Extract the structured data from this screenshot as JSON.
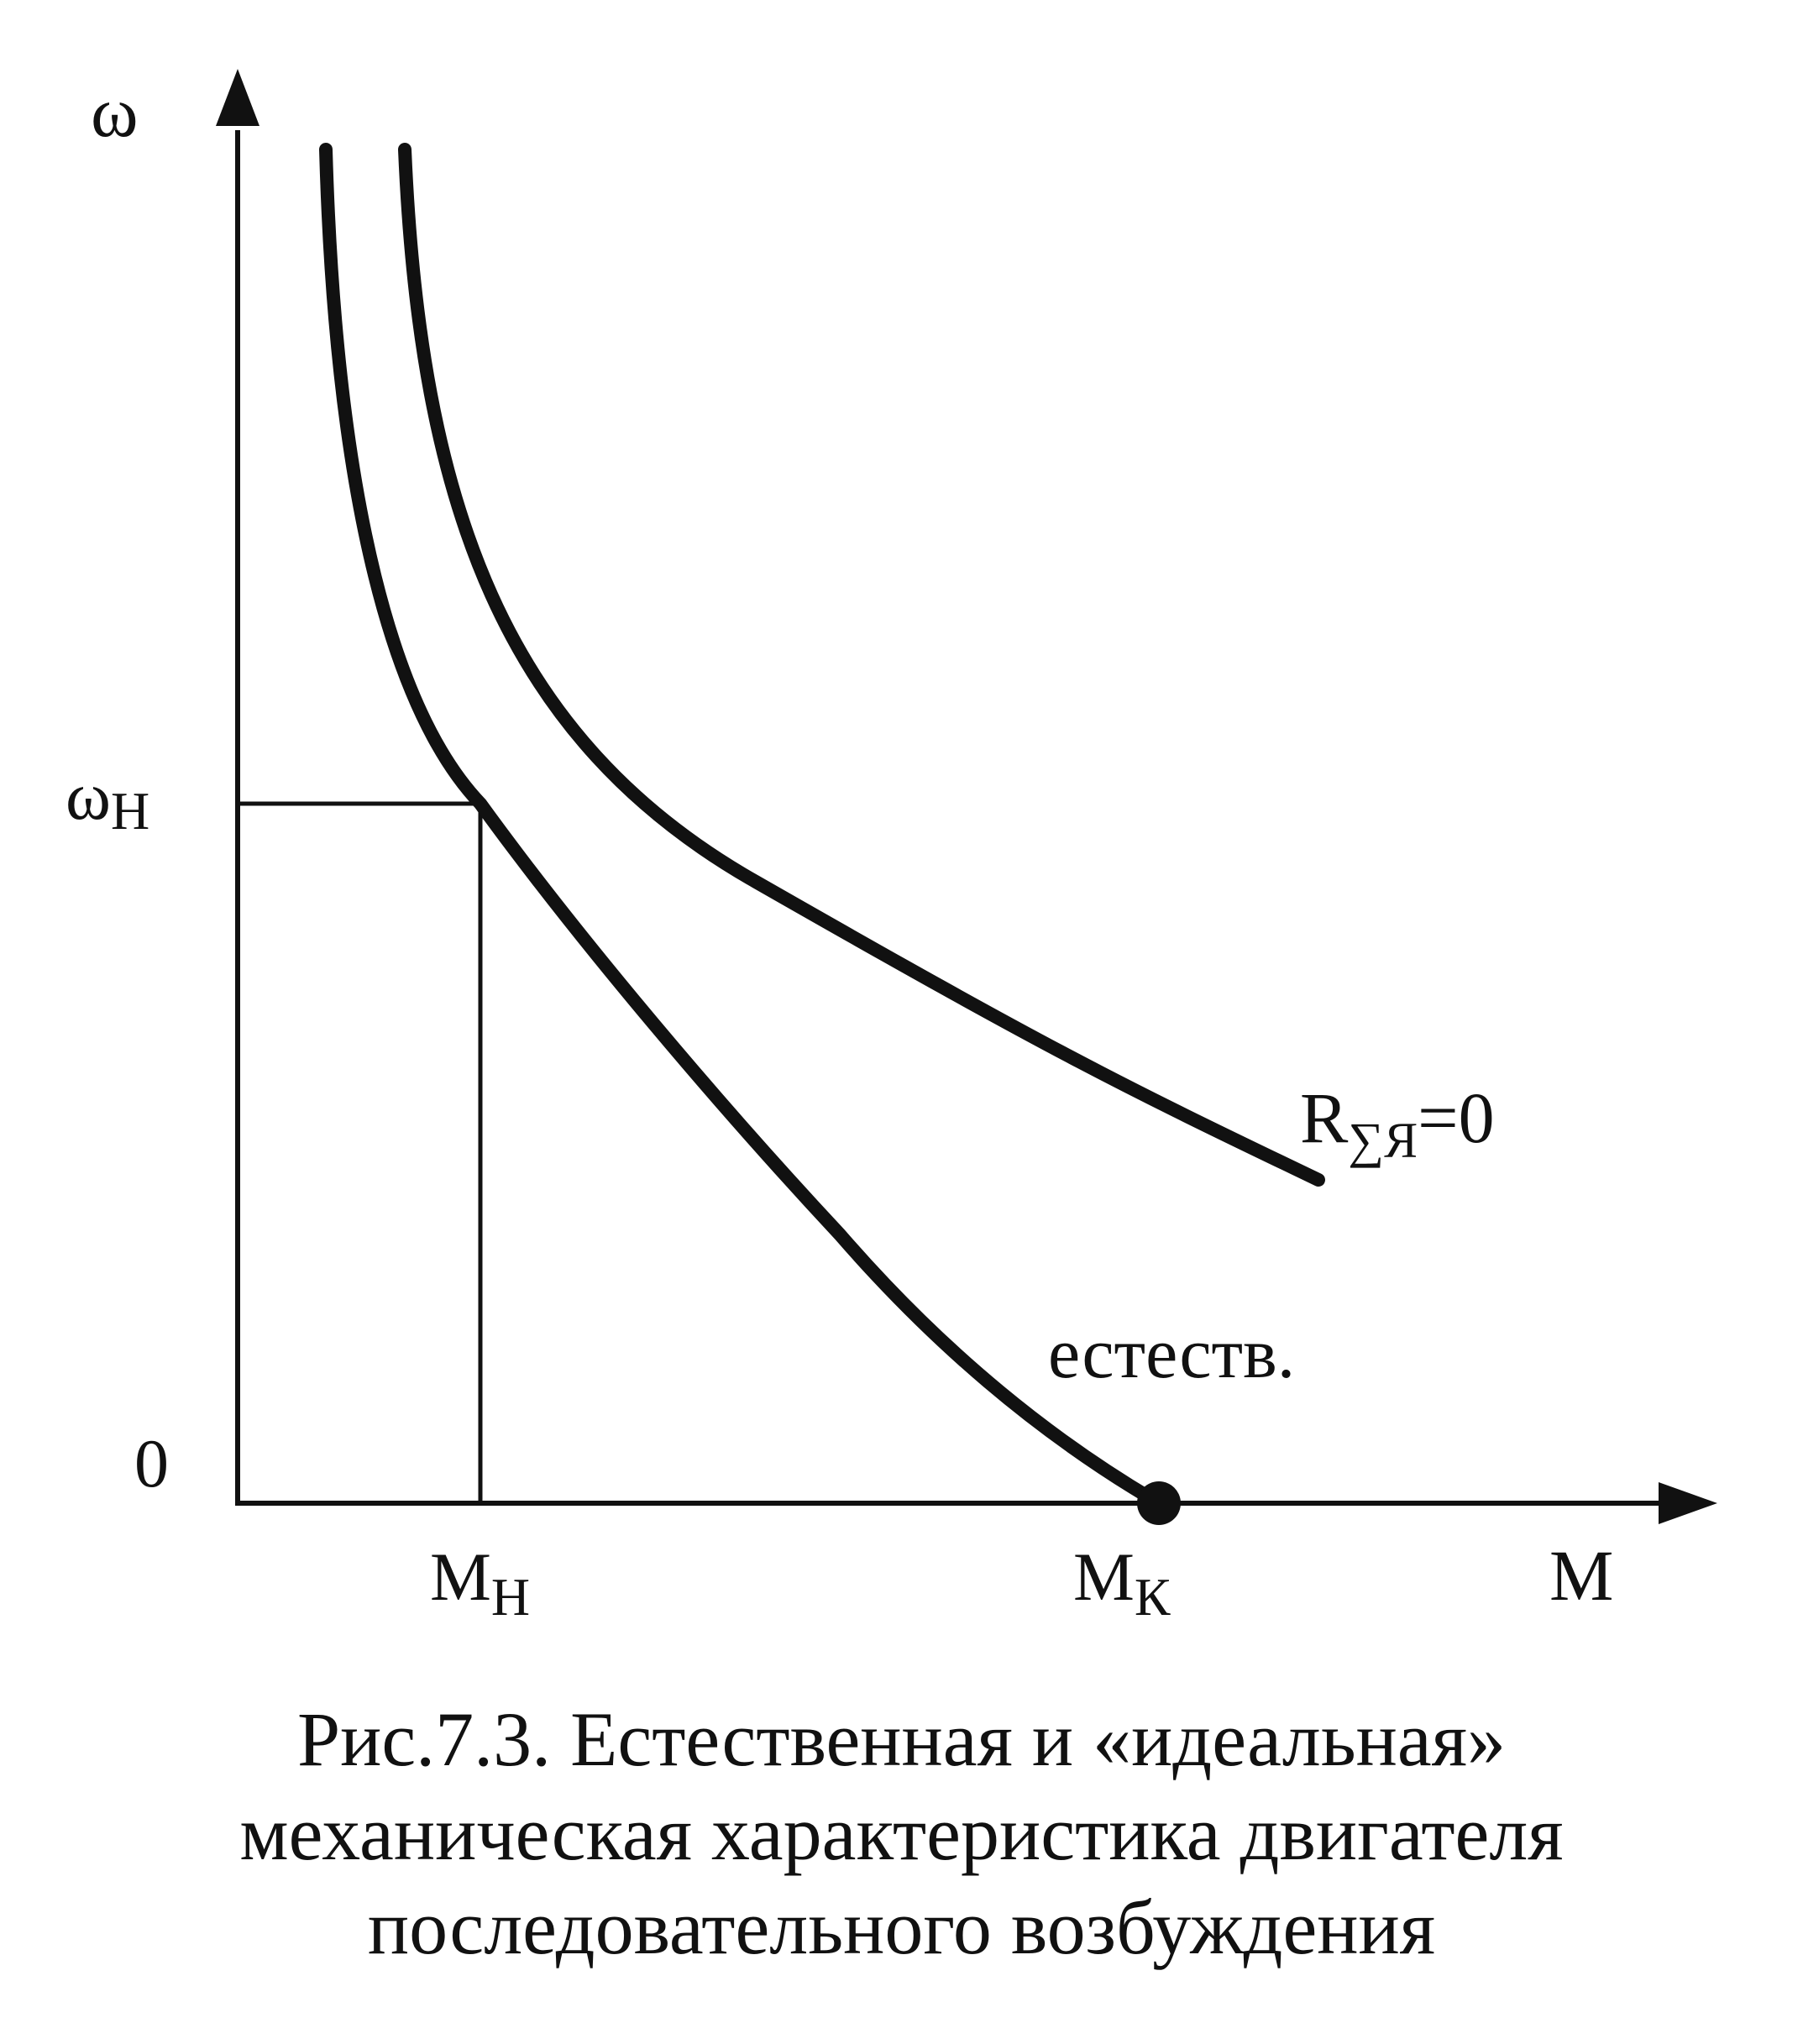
{
  "figure": {
    "y_axis_label": "ω",
    "x_axis_label": "M",
    "origin_label": "0",
    "omega_nominal": {
      "main": "ω",
      "sub": "Н"
    },
    "m_nominal": {
      "main": "М",
      "sub": "Н"
    },
    "m_short": {
      "main": "М",
      "sub": "К"
    },
    "curve_ideal_label": {
      "main": "R",
      "sub": "∑Я",
      "tail": "=0"
    },
    "curve_natural_label": "естеств."
  },
  "caption": {
    "lines": [
      "Рис.7.3. Естественная и «идеальная»",
      "механическая характеристика двигателя",
      "последовательного возбуждения"
    ]
  },
  "colors": {
    "ink": "#111111",
    "background": "#ffffff"
  }
}
